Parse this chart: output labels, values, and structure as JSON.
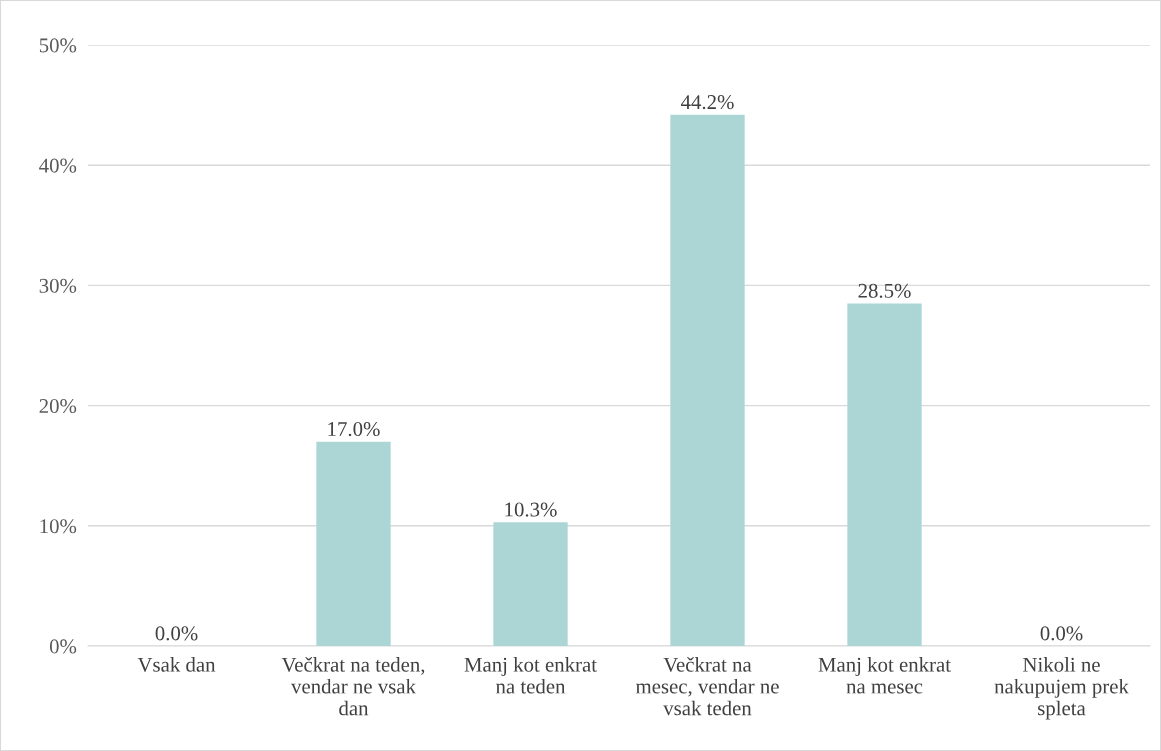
{
  "chart_data": {
    "type": "bar",
    "categories": [
      "Vsak dan",
      "Večkrat na teden,\nvendar ne vsak\ndan",
      "Manj kot enkrat\nna teden",
      "Večkrat na\nmesec, vendar ne\nvsak teden",
      "Manj kot enkrat\nna mesec",
      "Nikoli ne\nnakupujem prek\nspleta"
    ],
    "values": [
      0.0,
      17.0,
      10.3,
      44.2,
      28.5,
      0.0
    ],
    "value_labels": [
      "0.0%",
      "17.0%",
      "10.3%",
      "44.2%",
      "28.5%",
      "0.0%"
    ],
    "color": "#acd5d6",
    "ylim": [
      0,
      50
    ],
    "yticks": [
      {
        "value": 0,
        "label": "0%"
      },
      {
        "value": 10,
        "label": "10%"
      },
      {
        "value": 20,
        "label": "20%"
      },
      {
        "value": 30,
        "label": "30%"
      },
      {
        "value": 40,
        "label": "40%"
      },
      {
        "value": 50,
        "label": "50%"
      }
    ],
    "grid": "y"
  }
}
